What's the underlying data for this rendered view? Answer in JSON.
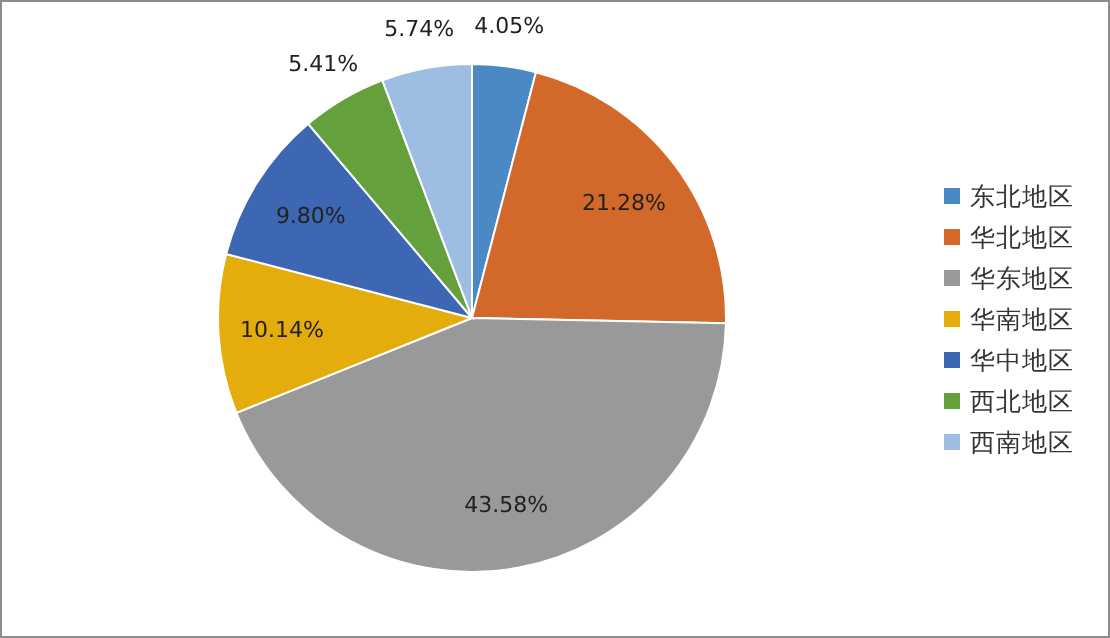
{
  "chart_data": {
    "type": "pie",
    "categories": [
      "东北地区",
      "华北地区",
      "华东地区",
      "华南地区",
      "华中地区",
      "西北地区",
      "西南地区"
    ],
    "values": [
      4.05,
      21.28,
      43.58,
      10.14,
      9.8,
      5.41,
      5.74
    ],
    "value_labels": [
      "4.05%",
      "21.28%",
      "43.58%",
      "10.14%",
      "9.80%",
      "5.41%",
      "5.74%"
    ],
    "colors": [
      "#4a89c4",
      "#d2692a",
      "#999999",
      "#e5ad0c",
      "#3d66b3",
      "#64a03c",
      "#9dbde2"
    ],
    "legend": "right"
  }
}
